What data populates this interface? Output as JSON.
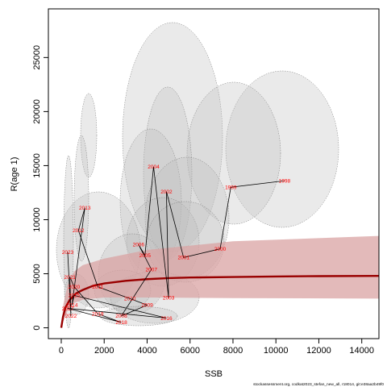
{
  "chart_data": {
    "type": "scatter",
    "xlabel": "SSB",
    "ylabel": "R(age 1)",
    "xlim": [
      -600,
      14800
    ],
    "ylim": [
      -1000,
      29500
    ],
    "x_ticks": [
      "0",
      "2000",
      "4000",
      "6000",
      "8000",
      "10000",
      "12000",
      "14000"
    ],
    "y_ticks": [
      "0",
      "5000",
      "10000",
      "15000",
      "20000",
      "25000"
    ],
    "grid": false,
    "stock_recruit_fit": {
      "name": "",
      "color": "#990000",
      "band_color": "#d9a3a3",
      "points": [
        [
          0,
          0
        ],
        [
          80,
          1000
        ],
        [
          200,
          1900
        ],
        [
          400,
          2600
        ],
        [
          700,
          3200
        ],
        [
          1000,
          3500
        ],
        [
          1500,
          3900
        ],
        [
          2000,
          4100
        ],
        [
          3000,
          4350
        ],
        [
          4000,
          4500
        ],
        [
          5000,
          4600
        ],
        [
          6000,
          4650
        ],
        [
          8000,
          4700
        ],
        [
          10000,
          4750
        ],
        [
          12000,
          4780
        ],
        [
          14800,
          4800
        ]
      ],
      "band_lower": [
        [
          0,
          0
        ],
        [
          100,
          600
        ],
        [
          300,
          1600
        ],
        [
          600,
          2300
        ],
        [
          1000,
          2600
        ],
        [
          2000,
          2800
        ],
        [
          4000,
          2800
        ],
        [
          8000,
          2750
        ],
        [
          14800,
          2700
        ]
      ],
      "band_upper": [
        [
          0,
          0
        ],
        [
          100,
          2200
        ],
        [
          300,
          4000
        ],
        [
          600,
          5200
        ],
        [
          1000,
          5800
        ],
        [
          2000,
          6400
        ],
        [
          4000,
          7200
        ],
        [
          8000,
          8000
        ],
        [
          14800,
          8500
        ]
      ]
    },
    "points": [
      {
        "label": "1998",
        "x": 10400,
        "y": 13600
      },
      {
        "label": "1999",
        "x": 7900,
        "y": 13000
      },
      {
        "label": "2000",
        "x": 7400,
        "y": 7300
      },
      {
        "label": "2001",
        "x": 5700,
        "y": 6500
      },
      {
        "label": "2002",
        "x": 4900,
        "y": 12600
      },
      {
        "label": "2003",
        "x": 5000,
        "y": 2800
      },
      {
        "label": "2004",
        "x": 4300,
        "y": 14900
      },
      {
        "label": "2005",
        "x": 3900,
        "y": 6700
      },
      {
        "label": "2006",
        "x": 3600,
        "y": 7700
      },
      {
        "label": "2007",
        "x": 4200,
        "y": 5400
      },
      {
        "label": "2008",
        "x": 2800,
        "y": 1100
      },
      {
        "label": "2009",
        "x": 4000,
        "y": 2100
      },
      {
        "label": "2010",
        "x": 3200,
        "y": 2700
      },
      {
        "label": "2011",
        "x": 1700,
        "y": 3800
      },
      {
        "label": "2012",
        "x": 800,
        "y": 9000
      },
      {
        "label": "2013",
        "x": 1100,
        "y": 11100
      },
      {
        "label": "2014",
        "x": 500,
        "y": 2100
      },
      {
        "label": "2015",
        "x": 600,
        "y": 3000
      },
      {
        "label": "2016",
        "x": 4900,
        "y": 900
      },
      {
        "label": "2017",
        "x": 300,
        "y": 1800
      },
      {
        "label": "2018",
        "x": 2800,
        "y": 500
      },
      {
        "label": "2019",
        "x": 1700,
        "y": 1300
      },
      {
        "label": "2020",
        "x": 600,
        "y": 3800
      },
      {
        "label": "2021",
        "x": 400,
        "y": 4700
      },
      {
        "label": "2022",
        "x": 450,
        "y": 1100
      },
      {
        "label": "2023",
        "x": 300,
        "y": 7000
      }
    ]
  },
  "credit": "stockassessment.org, codkat2023_stefan_new_all, r18014, git:e38aa2b49f0"
}
